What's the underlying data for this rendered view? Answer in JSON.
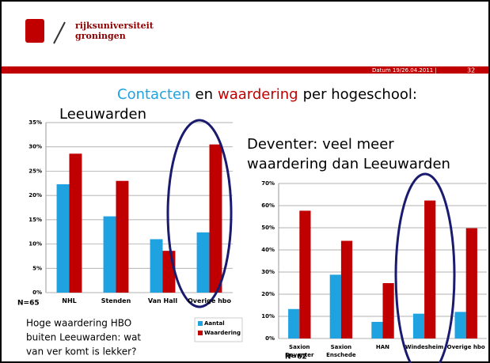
{
  "header": {
    "logo_line1": "rijksuniversiteit",
    "logo_line2": "groningen",
    "date": "Datum 19/26.04.2011 |",
    "page": "32"
  },
  "title": {
    "part1": "Contacten",
    "part2": "en",
    "part3": "waardering",
    "part4": "per hogeschool:",
    "line2": "Leeuwarden"
  },
  "deventer_note": {
    "line1": "Deventer: veel meer",
    "line2": "waardering dan Leeuwarden"
  },
  "comment": {
    "line1": "Hoge waardering HBO",
    "line2": "buiten Leeuwarden: wat",
    "line3": "van ver komt is lekker?"
  },
  "chart_data": [
    {
      "type": "bar",
      "note": "N=65",
      "categories": [
        "NHL",
        "Stenden",
        "Van Hall",
        "Overige hbo"
      ],
      "series": [
        {
          "name": "Aantal",
          "color": "#1fa2e0",
          "values": [
            22.3,
            15.7,
            11,
            12.4
          ]
        },
        {
          "name": "Waardering",
          "color": "#c00000",
          "values": [
            28.6,
            23,
            8.6,
            30.5
          ]
        }
      ],
      "ylim": [
        0,
        35
      ],
      "yticks": [
        {
          "value": 0,
          "label": "0%"
        },
        {
          "value": 5,
          "label": "5%"
        },
        {
          "value": 10,
          "label": "10%"
        },
        {
          "value": 15,
          "label": "15%"
        },
        {
          "value": 20,
          "label": "20%"
        },
        {
          "value": 25,
          "label": "25%"
        },
        {
          "value": 30,
          "label": "30%"
        },
        {
          "value": 35,
          "label": "35%"
        }
      ],
      "grid": true,
      "legend": "bottom-right"
    },
    {
      "type": "bar",
      "note": "N=62",
      "categories": [
        "Saxion Deventer",
        "Saxion Enschede",
        "HAN",
        "Windesheim",
        "Overige hbo"
      ],
      "series": [
        {
          "name": "Aantal",
          "color": "#1fa2e0",
          "values": [
            13.3,
            28.8,
            7.5,
            11.2,
            12
          ]
        },
        {
          "name": "Waardering",
          "color": "#c00000",
          "values": [
            57.7,
            44.1,
            25,
            62.3,
            49.8
          ]
        }
      ],
      "ylim": [
        0,
        70
      ],
      "yticks": [
        {
          "value": 0,
          "label": "0%"
        },
        {
          "value": 10,
          "label": "10%"
        },
        {
          "value": 20,
          "label": "20%"
        },
        {
          "value": 30,
          "label": "30%"
        },
        {
          "value": 40,
          "label": "40%"
        },
        {
          "value": 50,
          "label": "50%"
        },
        {
          "value": 60,
          "label": "60%"
        },
        {
          "value": 70,
          "label": "70%"
        }
      ],
      "grid": true
    }
  ]
}
